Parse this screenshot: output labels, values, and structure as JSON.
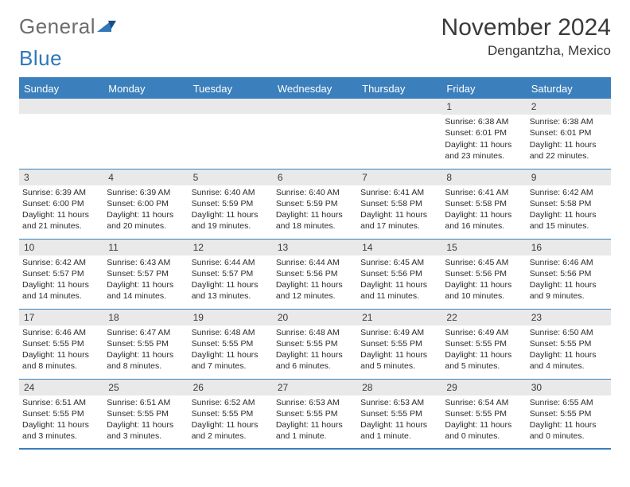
{
  "brand": {
    "word1": "General",
    "word2": "Blue"
  },
  "title": "November 2024",
  "location": "Dengantzha, Mexico",
  "colors": {
    "header_bg": "#3b7fbc",
    "header_text": "#ffffff",
    "daynum_bg": "#e9e9e9",
    "border": "#3b7fbc",
    "text": "#2b2b2b",
    "logo_gray": "#6d6d6d",
    "logo_blue": "#2f77b7"
  },
  "day_headers": [
    "Sunday",
    "Monday",
    "Tuesday",
    "Wednesday",
    "Thursday",
    "Friday",
    "Saturday"
  ],
  "weeks": [
    [
      null,
      null,
      null,
      null,
      null,
      {
        "n": "1",
        "sr": "Sunrise: 6:38 AM",
        "ss": "Sunset: 6:01 PM",
        "dl": "Daylight: 11 hours and 23 minutes."
      },
      {
        "n": "2",
        "sr": "Sunrise: 6:38 AM",
        "ss": "Sunset: 6:01 PM",
        "dl": "Daylight: 11 hours and 22 minutes."
      }
    ],
    [
      {
        "n": "3",
        "sr": "Sunrise: 6:39 AM",
        "ss": "Sunset: 6:00 PM",
        "dl": "Daylight: 11 hours and 21 minutes."
      },
      {
        "n": "4",
        "sr": "Sunrise: 6:39 AM",
        "ss": "Sunset: 6:00 PM",
        "dl": "Daylight: 11 hours and 20 minutes."
      },
      {
        "n": "5",
        "sr": "Sunrise: 6:40 AM",
        "ss": "Sunset: 5:59 PM",
        "dl": "Daylight: 11 hours and 19 minutes."
      },
      {
        "n": "6",
        "sr": "Sunrise: 6:40 AM",
        "ss": "Sunset: 5:59 PM",
        "dl": "Daylight: 11 hours and 18 minutes."
      },
      {
        "n": "7",
        "sr": "Sunrise: 6:41 AM",
        "ss": "Sunset: 5:58 PM",
        "dl": "Daylight: 11 hours and 17 minutes."
      },
      {
        "n": "8",
        "sr": "Sunrise: 6:41 AM",
        "ss": "Sunset: 5:58 PM",
        "dl": "Daylight: 11 hours and 16 minutes."
      },
      {
        "n": "9",
        "sr": "Sunrise: 6:42 AM",
        "ss": "Sunset: 5:58 PM",
        "dl": "Daylight: 11 hours and 15 minutes."
      }
    ],
    [
      {
        "n": "10",
        "sr": "Sunrise: 6:42 AM",
        "ss": "Sunset: 5:57 PM",
        "dl": "Daylight: 11 hours and 14 minutes."
      },
      {
        "n": "11",
        "sr": "Sunrise: 6:43 AM",
        "ss": "Sunset: 5:57 PM",
        "dl": "Daylight: 11 hours and 14 minutes."
      },
      {
        "n": "12",
        "sr": "Sunrise: 6:44 AM",
        "ss": "Sunset: 5:57 PM",
        "dl": "Daylight: 11 hours and 13 minutes."
      },
      {
        "n": "13",
        "sr": "Sunrise: 6:44 AM",
        "ss": "Sunset: 5:56 PM",
        "dl": "Daylight: 11 hours and 12 minutes."
      },
      {
        "n": "14",
        "sr": "Sunrise: 6:45 AM",
        "ss": "Sunset: 5:56 PM",
        "dl": "Daylight: 11 hours and 11 minutes."
      },
      {
        "n": "15",
        "sr": "Sunrise: 6:45 AM",
        "ss": "Sunset: 5:56 PM",
        "dl": "Daylight: 11 hours and 10 minutes."
      },
      {
        "n": "16",
        "sr": "Sunrise: 6:46 AM",
        "ss": "Sunset: 5:56 PM",
        "dl": "Daylight: 11 hours and 9 minutes."
      }
    ],
    [
      {
        "n": "17",
        "sr": "Sunrise: 6:46 AM",
        "ss": "Sunset: 5:55 PM",
        "dl": "Daylight: 11 hours and 8 minutes."
      },
      {
        "n": "18",
        "sr": "Sunrise: 6:47 AM",
        "ss": "Sunset: 5:55 PM",
        "dl": "Daylight: 11 hours and 8 minutes."
      },
      {
        "n": "19",
        "sr": "Sunrise: 6:48 AM",
        "ss": "Sunset: 5:55 PM",
        "dl": "Daylight: 11 hours and 7 minutes."
      },
      {
        "n": "20",
        "sr": "Sunrise: 6:48 AM",
        "ss": "Sunset: 5:55 PM",
        "dl": "Daylight: 11 hours and 6 minutes."
      },
      {
        "n": "21",
        "sr": "Sunrise: 6:49 AM",
        "ss": "Sunset: 5:55 PM",
        "dl": "Daylight: 11 hours and 5 minutes."
      },
      {
        "n": "22",
        "sr": "Sunrise: 6:49 AM",
        "ss": "Sunset: 5:55 PM",
        "dl": "Daylight: 11 hours and 5 minutes."
      },
      {
        "n": "23",
        "sr": "Sunrise: 6:50 AM",
        "ss": "Sunset: 5:55 PM",
        "dl": "Daylight: 11 hours and 4 minutes."
      }
    ],
    [
      {
        "n": "24",
        "sr": "Sunrise: 6:51 AM",
        "ss": "Sunset: 5:55 PM",
        "dl": "Daylight: 11 hours and 3 minutes."
      },
      {
        "n": "25",
        "sr": "Sunrise: 6:51 AM",
        "ss": "Sunset: 5:55 PM",
        "dl": "Daylight: 11 hours and 3 minutes."
      },
      {
        "n": "26",
        "sr": "Sunrise: 6:52 AM",
        "ss": "Sunset: 5:55 PM",
        "dl": "Daylight: 11 hours and 2 minutes."
      },
      {
        "n": "27",
        "sr": "Sunrise: 6:53 AM",
        "ss": "Sunset: 5:55 PM",
        "dl": "Daylight: 11 hours and 1 minute."
      },
      {
        "n": "28",
        "sr": "Sunrise: 6:53 AM",
        "ss": "Sunset: 5:55 PM",
        "dl": "Daylight: 11 hours and 1 minute."
      },
      {
        "n": "29",
        "sr": "Sunrise: 6:54 AM",
        "ss": "Sunset: 5:55 PM",
        "dl": "Daylight: 11 hours and 0 minutes."
      },
      {
        "n": "30",
        "sr": "Sunrise: 6:55 AM",
        "ss": "Sunset: 5:55 PM",
        "dl": "Daylight: 11 hours and 0 minutes."
      }
    ]
  ]
}
